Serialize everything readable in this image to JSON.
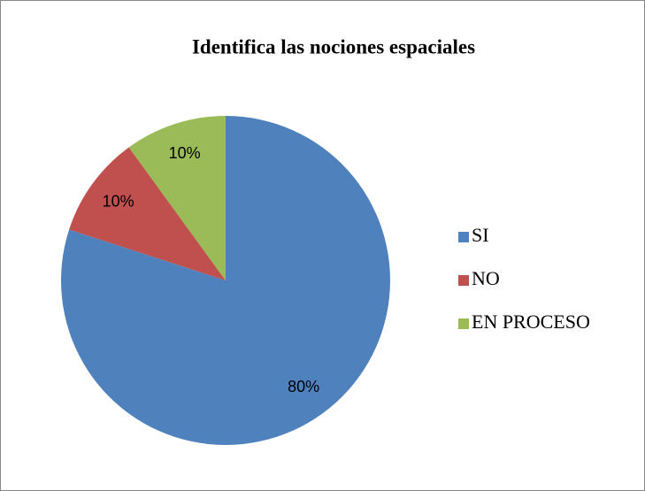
{
  "chart_data": {
    "type": "pie",
    "title": "Identifica las nociones espaciales",
    "categories": [
      "SI",
      "NO",
      "EN PROCESO"
    ],
    "values": [
      80,
      10,
      10
    ],
    "value_labels": [
      "80%",
      "10%",
      "10%"
    ],
    "colors": [
      "#4f81bd",
      "#c0504d",
      "#9bbb59"
    ],
    "legend": "right"
  }
}
